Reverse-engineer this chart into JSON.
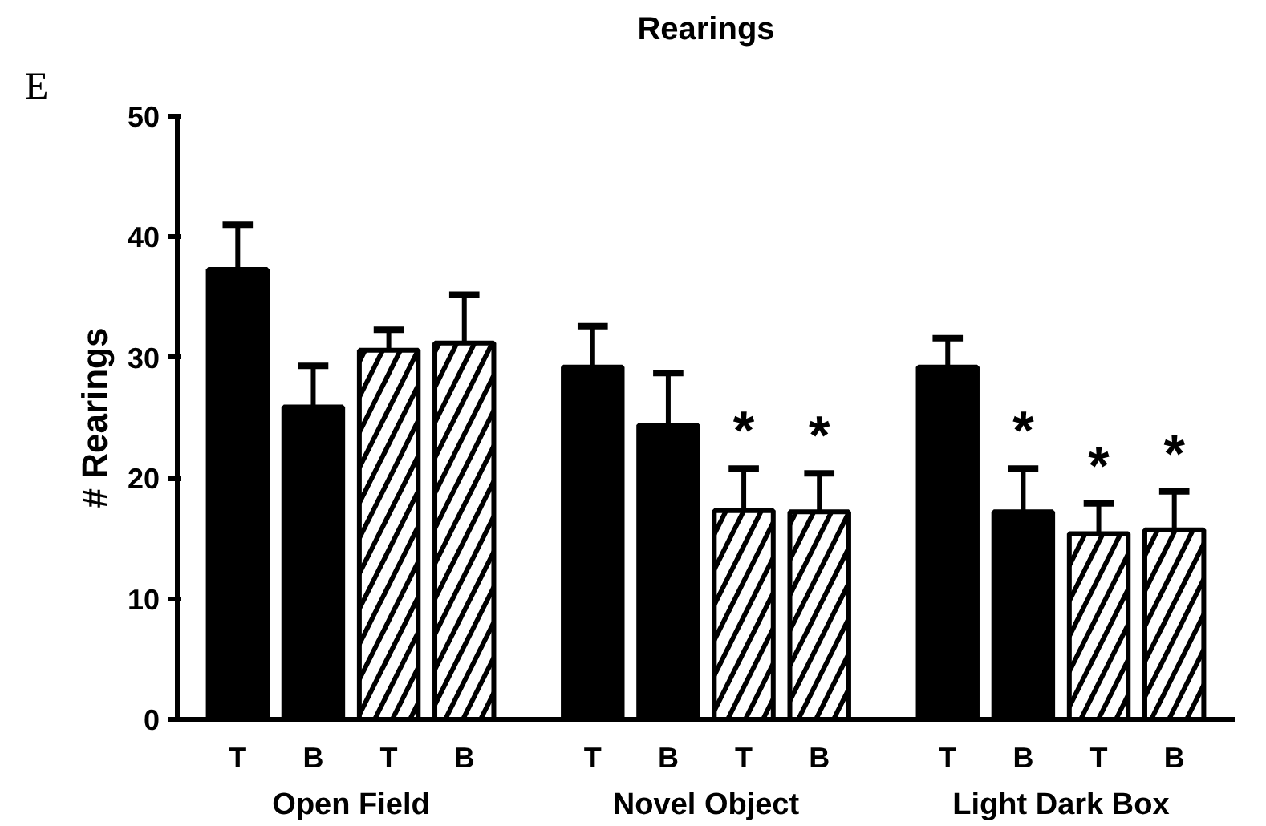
{
  "chart_data": {
    "type": "bar",
    "title": "Rearings",
    "ylabel": "# Rearings",
    "categories": [
      "T",
      "B",
      "T",
      "B",
      "T",
      "B",
      "T",
      "B",
      "T",
      "B",
      "T",
      "B"
    ],
    "series": [
      {
        "color": "#000000",
        "values": [
          37.3,
          25.9,
          null,
          null,
          29.2,
          24.4,
          null,
          null,
          29.2,
          17.2,
          null,
          null
        ],
        "errors": [
          [
            37.3,
            41.0
          ],
          [
            25.9,
            29.3
          ],
          null,
          null,
          [
            29.2,
            32.6
          ],
          [
            24.4,
            28.7
          ],
          null,
          null,
          [
            29.2,
            31.6
          ],
          [
            17.2,
            20.8
          ],
          null,
          null
        ],
        "value_labels": [
          null,
          null,
          null,
          null,
          null,
          null,
          null,
          null,
          null,
          "*",
          null,
          null
        ]
      },
      {
        "color": "#ffffff",
        "values": [
          null,
          null,
          30.6,
          31.2,
          null,
          null,
          17.3,
          17.2,
          null,
          null,
          15.4,
          15.7
        ],
        "errors": [
          null,
          null,
          [
            30.6,
            32.3
          ],
          [
            31.2,
            35.2
          ],
          null,
          null,
          [
            17.3,
            20.8
          ],
          [
            17.2,
            20.4
          ],
          null,
          null,
          [
            15.4,
            17.9
          ],
          [
            15.7,
            18.9
          ]
        ],
        "value_labels": [
          null,
          null,
          null,
          null,
          null,
          null,
          "*",
          "*",
          null,
          null,
          "*",
          "*"
        ]
      }
    ],
    "ylim": [
      0,
      50
    ],
    "yticks": [
      0,
      10,
      20,
      30,
      40,
      50
    ],
    "grid": false,
    "annotations": [
      "E",
      "Open Field",
      "Novel Object",
      "Light Dark Box"
    ]
  }
}
